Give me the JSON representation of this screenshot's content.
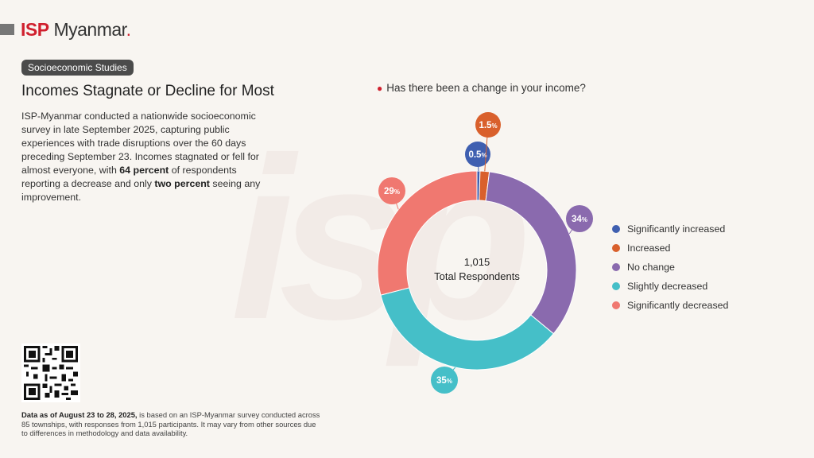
{
  "header": {
    "logo_isp": "ISP",
    "logo_name": "Myanmar",
    "logo_dot": "."
  },
  "tag": "Socioeconomic Studies",
  "title": "Incomes Stagnate or Decline for Most",
  "body": {
    "p1": "ISP-Myanmar conducted a nationwide socioeconomic survey in late September 2025, capturing public experiences with trade disruptions over the 60 days preceding September 23. Incomes stagnated or fell for almost everyone, with ",
    "b1": "64 percent",
    "p2": " of respondents reporting a decrease and only ",
    "b2": "two percent",
    "p3": " seeing any improvement."
  },
  "footnote": {
    "bold": "Data as of August 23 to 28, 2025,",
    "text": " is based on an ISP-Myanmar survey conducted across 85 townships, with responses from 1,015 participants. It may vary from other sources due to differences in methodology and data availability."
  },
  "chart_data": {
    "type": "pie",
    "title": "Has there been a change in your income?",
    "center_value": "1,015",
    "center_label": "Total Respondents",
    "legend_position": "right",
    "series": [
      {
        "name": "Significantly increased",
        "value": 0.5,
        "label": "0.5",
        "color": "#3f5fb0"
      },
      {
        "name": "Increased",
        "value": 1.5,
        "label": "1.5",
        "color": "#d9602c"
      },
      {
        "name": "No change",
        "value": 34,
        "label": "34",
        "color": "#8a6aae"
      },
      {
        "name": "Slightly decreased",
        "value": 35,
        "label": "35",
        "color": "#45bfc8"
      },
      {
        "name": "Significantly decreased",
        "value": 29,
        "label": "29",
        "color": "#f07870"
      }
    ],
    "percent_sign": "%"
  }
}
